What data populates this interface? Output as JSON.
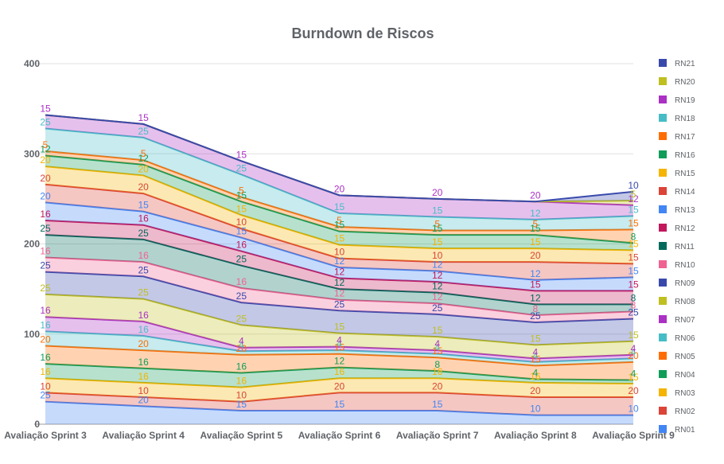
{
  "chart_data": {
    "type": "area",
    "stacked": true,
    "title": "Burndown de Riscos",
    "xlabel": "",
    "ylabel": "",
    "ylim": [
      0,
      400
    ],
    "yticks": [
      0,
      100,
      200,
      300,
      400
    ],
    "grid": true,
    "legend_position": "right",
    "categories": [
      "Avaliação Sprint 3",
      "Avaliação Sprint 4",
      "Avaliação Sprint 5",
      "Avaliação Sprint 6",
      "Avaliação Sprint 7",
      "Avaliação Sprint 8",
      "Avaliação Sprint 9"
    ],
    "series": [
      {
        "name": "RN01",
        "color": "#4285f4",
        "values": [
          25,
          20,
          15,
          15,
          15,
          10,
          10
        ]
      },
      {
        "name": "RN02",
        "color": "#db4437",
        "values": [
          10,
          10,
          10,
          20,
          20,
          20,
          20
        ]
      },
      {
        "name": "RN03",
        "color": "#f4b400",
        "values": [
          16,
          16,
          16,
          16,
          16,
          16,
          15
        ]
      },
      {
        "name": "RN04",
        "color": "#0f9d58",
        "values": [
          16,
          16,
          16,
          12,
          8,
          4,
          4
        ]
      },
      {
        "name": "RN05",
        "color": "#ff6d01",
        "values": [
          20,
          20,
          20,
          15,
          15,
          15,
          20
        ]
      },
      {
        "name": "RN06",
        "color": "#46bdc6",
        "values": [
          16,
          16,
          4,
          4,
          4,
          4,
          4
        ]
      },
      {
        "name": "RN07",
        "color": "#ab30c4",
        "values": [
          16,
          16,
          4,
          4,
          4,
          4,
          4
        ]
      },
      {
        "name": "RN08",
        "color": "#bfbf20",
        "values": [
          25,
          25,
          25,
          15,
          15,
          15,
          15
        ]
      },
      {
        "name": "RN09",
        "color": "#3949ab",
        "values": [
          25,
          25,
          25,
          25,
          25,
          25,
          25
        ]
      },
      {
        "name": "RN10",
        "color": "#f06292",
        "values": [
          16,
          16,
          16,
          12,
          12,
          8,
          8
        ]
      },
      {
        "name": "RN11",
        "color": "#00695c",
        "values": [
          25,
          25,
          25,
          12,
          12,
          12,
          8
        ]
      },
      {
        "name": "RN12",
        "color": "#c2185b",
        "values": [
          16,
          16,
          16,
          12,
          12,
          15,
          15
        ]
      },
      {
        "name": "RN13",
        "color": "#4285f4",
        "values": [
          20,
          15,
          15,
          12,
          12,
          12,
          15
        ]
      },
      {
        "name": "RN14",
        "color": "#db4437",
        "values": [
          20,
          20,
          10,
          10,
          10,
          20,
          15
        ]
      },
      {
        "name": "RN15",
        "color": "#f4b400",
        "values": [
          20,
          20,
          15,
          15,
          15,
          15,
          15
        ]
      },
      {
        "name": "RN16",
        "color": "#0f9d58",
        "values": [
          12,
          12,
          15,
          15,
          15,
          15,
          8
        ]
      },
      {
        "name": "RN17",
        "color": "#ff6d01",
        "values": [
          5,
          5,
          5,
          5,
          5,
          5,
          15
        ]
      },
      {
        "name": "RN18",
        "color": "#46bdc6",
        "values": [
          25,
          25,
          25,
          15,
          15,
          12,
          15
        ]
      },
      {
        "name": "RN19",
        "color": "#ab30c4",
        "values": [
          15,
          15,
          15,
          20,
          20,
          20,
          12
        ]
      },
      {
        "name": "RN20",
        "color": "#bfbf20",
        "values": [
          0,
          0,
          0,
          0,
          0,
          0,
          5
        ]
      },
      {
        "name": "RN21",
        "color": "#3949ab",
        "values": [
          0,
          0,
          0,
          0,
          0,
          0,
          10
        ]
      }
    ],
    "labeled_series": [
      "RN01",
      "RN02",
      "RN03",
      "RN04",
      "RN05",
      "RN06",
      "RN07",
      "RN08",
      "RN09",
      "RN10",
      "RN11",
      "RN12",
      "RN13",
      "RN14",
      "RN15",
      "RN16",
      "RN17",
      "RN18",
      "RN19"
    ]
  }
}
